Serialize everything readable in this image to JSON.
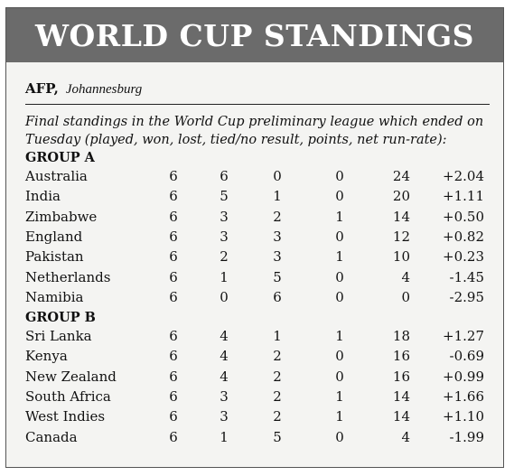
{
  "title": "WORLD CUP STANDINGS",
  "byline": {
    "agency": "AFP,",
    "place": "Johannesburg"
  },
  "intro": "Final standings in the World Cup preliminary league which ended on Tuesday (played, won, lost, tied/no result, points, net run-rate):",
  "groups": [
    {
      "name": "GROUP A",
      "rows": [
        [
          "Australia",
          "6",
          "6",
          "0",
          "0",
          "24",
          "+2.04"
        ],
        [
          "India",
          "6",
          "5",
          "1",
          "0",
          "20",
          "+1.11"
        ],
        [
          "Zimbabwe",
          "6",
          "3",
          "2",
          "1",
          "14",
          "+0.50"
        ],
        [
          "England",
          "6",
          "3",
          "3",
          "0",
          "12",
          "+0.82"
        ],
        [
          "Pakistan",
          "6",
          "2",
          "3",
          "1",
          "10",
          "+0.23"
        ],
        [
          "Netherlands",
          "6",
          "1",
          "5",
          "0",
          "4",
          "-1.45"
        ],
        [
          "Namibia",
          "6",
          "0",
          "6",
          "0",
          "0",
          "-2.95"
        ]
      ]
    },
    {
      "name": "GROUP B",
      "rows": [
        [
          "Sri Lanka",
          "6",
          "4",
          "1",
          "1",
          "18",
          "+1.27"
        ],
        [
          "Kenya",
          "6",
          "4",
          "2",
          "0",
          "16",
          "-0.69"
        ],
        [
          "New Zealand",
          "6",
          "4",
          "2",
          "0",
          "16",
          "+0.99"
        ],
        [
          "South Africa",
          "6",
          "3",
          "2",
          "1",
          "14",
          "+1.66"
        ],
        [
          "West Indies",
          "6",
          "3",
          "2",
          "1",
          "14",
          "+1.10"
        ],
        [
          "Canada",
          "6",
          "1",
          "5",
          "0",
          "4",
          "-1.99"
        ]
      ]
    }
  ]
}
